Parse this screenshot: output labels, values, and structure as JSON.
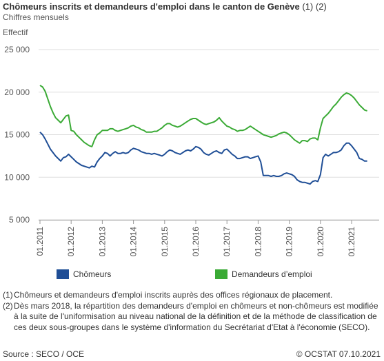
{
  "header": {
    "title_bold": "Chômeurs inscrits et demandeurs d'emploi dans le canton de Genève",
    "title_notes": " (1) (2)",
    "subtitle": "Chiffres mensuels",
    "ylabel": "Effectif"
  },
  "chart_data": {
    "type": "line",
    "title": "Chômeurs inscrits et demandeurs d'emploi dans le canton de Genève (1) (2)",
    "subtitle": "Chiffres mensuels",
    "ylabel": "Effectif",
    "xlabel": "",
    "ylim": [
      5000,
      25000
    ],
    "yticks": [
      5000,
      10000,
      15000,
      20000,
      25000
    ],
    "ytick_labels": [
      "5 000",
      "10 000",
      "15 000",
      "20 000",
      "25 000"
    ],
    "xticks": [
      "01.2011",
      "01.2012",
      "01.2013",
      "01.2014",
      "01.2015",
      "01.2016",
      "01.2017",
      "01.2018",
      "01.2019",
      "01.2020",
      "01.2021"
    ],
    "x_start": "01.2011",
    "x_end": "09.2021",
    "frequency": "monthly",
    "grid": true,
    "legend": "bottom",
    "series": [
      {
        "name": "Chômeurs",
        "color": "#1f4e96",
        "values": [
          15300,
          15000,
          14500,
          13900,
          13300,
          12900,
          12500,
          12200,
          11900,
          12300,
          12400,
          12700,
          12400,
          12100,
          11800,
          11600,
          11400,
          11300,
          11200,
          11100,
          11300,
          11200,
          11800,
          12200,
          12500,
          12900,
          12800,
          12500,
          12800,
          13000,
          12800,
          12800,
          12900,
          12800,
          12900,
          13200,
          13400,
          13300,
          13200,
          13000,
          12900,
          12800,
          12800,
          12700,
          12800,
          12700,
          12600,
          12500,
          12700,
          13000,
          13200,
          13100,
          12900,
          12800,
          12700,
          12900,
          13100,
          13200,
          13100,
          13300,
          13600,
          13500,
          13300,
          12900,
          12700,
          12600,
          12800,
          13000,
          13100,
          12900,
          12800,
          13200,
          13300,
          13000,
          12700,
          12500,
          12200,
          12200,
          12300,
          12400,
          12400,
          12200,
          12300,
          12400,
          12500,
          11800,
          10200,
          10200,
          10200,
          10100,
          10200,
          10100,
          10100,
          10200,
          10400,
          10500,
          10400,
          10300,
          10100,
          9700,
          9500,
          9400,
          9400,
          9300,
          9200,
          9500,
          9600,
          9500,
          10300,
          12300,
          12700,
          12500,
          12700,
          12900,
          12900,
          13000,
          13200,
          13700,
          14000,
          14000,
          13700,
          13300,
          12900,
          12200,
          12100,
          11900,
          11900
        ]
      },
      {
        "name": "Demandeurs d’emploi",
        "color": "#3aaa35",
        "values": [
          20800,
          20600,
          20100,
          19200,
          18300,
          17600,
          17000,
          16700,
          16400,
          16800,
          17200,
          17300,
          15500,
          15400,
          15000,
          14700,
          14400,
          14100,
          13900,
          13700,
          13600,
          14400,
          15000,
          15200,
          15500,
          15500,
          15500,
          15700,
          15700,
          15500,
          15400,
          15500,
          15600,
          15700,
          15800,
          16000,
          16100,
          15900,
          15800,
          15600,
          15500,
          15300,
          15300,
          15300,
          15400,
          15400,
          15600,
          15800,
          16100,
          16300,
          16300,
          16100,
          16000,
          15900,
          16000,
          16200,
          16400,
          16600,
          16800,
          16900,
          16900,
          16700,
          16500,
          16300,
          16200,
          16300,
          16400,
          16500,
          16700,
          17000,
          16600,
          16300,
          16000,
          15900,
          15700,
          15600,
          15400,
          15500,
          15500,
          15600,
          15800,
          16000,
          15800,
          15600,
          15400,
          15200,
          15000,
          14900,
          14800,
          14700,
          14800,
          14900,
          15100,
          15200,
          15300,
          15200,
          15000,
          14700,
          14400,
          14200,
          14000,
          14300,
          14300,
          14200,
          14500,
          14600,
          14600,
          14400,
          15800,
          16900,
          17200,
          17500,
          17900,
          18300,
          18600,
          19000,
          19400,
          19700,
          19900,
          19800,
          19600,
          19300,
          18900,
          18500,
          18200,
          17900,
          17800
        ]
      }
    ]
  },
  "legend": {
    "chomeurs": "Chômeurs",
    "demandeurs": "Demandeurs d’emploi"
  },
  "footnotes": [
    {
      "mark": "(1)",
      "text": "Chômeurs et demandeurs d'emploi inscrits auprès des offices régionaux de placement."
    },
    {
      "mark": "(2)",
      "text": "Dès mars 2018, la répartition des demandeurs d'emploi en chômeurs et non-chômeurs est modifiée à la suite de l'uniformisation au niveau national de la définition et de la méthode de classification de ces deux sous-groupes dans le système d'information du Secrétariat d'Etat à l'économie (SECO)."
    }
  ],
  "footer": {
    "source": "Source : SECO / OCE",
    "copyright": "© OCSTAT 07.10.2021"
  }
}
